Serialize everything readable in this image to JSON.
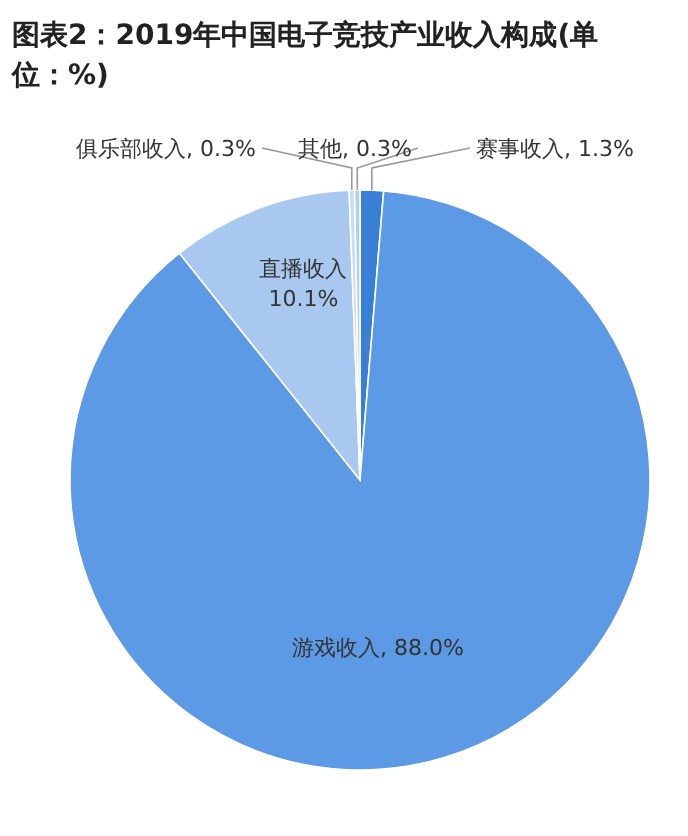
{
  "chart_data": {
    "type": "pie",
    "title": "图表2：2019年中国电子竞技产业收入构成(单位：%)",
    "categories": [
      "赛事收入",
      "游戏收入",
      "直播收入",
      "俱乐部收入",
      "其他"
    ],
    "values": [
      1.3,
      88.0,
      10.1,
      0.3,
      0.3
    ],
    "value_labels": [
      "1.3%",
      "88.0%",
      "10.1%",
      "0.3%",
      "0.3%"
    ],
    "colors": [
      "#3a7fd6",
      "#5d9ae6",
      "#a9c8ef",
      "#c9dcf3",
      "#b3cdee"
    ]
  }
}
